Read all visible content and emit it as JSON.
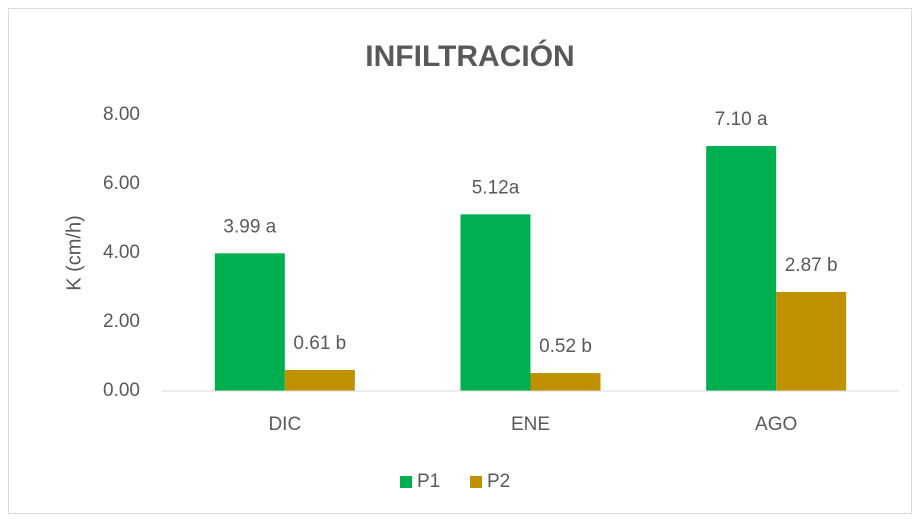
{
  "chart_data": {
    "type": "bar",
    "title": "INFILTRACIÓN",
    "y_label": "K (cm/h)",
    "categories": [
      "DIC",
      "ENE",
      "AGO"
    ],
    "series": [
      {
        "name": "P1",
        "color": "#00b050",
        "values": [
          3.99,
          5.12,
          7.1
        ],
        "value_labels": [
          "3.99 a",
          "5.12a",
          "7.10 a"
        ]
      },
      {
        "name": "P2",
        "color": "#bf9000",
        "values": [
          0.61,
          0.52,
          2.87
        ],
        "value_labels": [
          "0.61 b",
          "0.52 b",
          "2.87 b"
        ]
      }
    ],
    "ylim": [
      0,
      8
    ],
    "yticks": [
      {
        "value": 0,
        "label": "0.00"
      },
      {
        "value": 2,
        "label": "2.00"
      },
      {
        "value": 4,
        "label": "4.00"
      },
      {
        "value": 6,
        "label": "6.00"
      },
      {
        "value": 8,
        "label": "8.00"
      }
    ],
    "grid": false,
    "legend": "bottom"
  }
}
